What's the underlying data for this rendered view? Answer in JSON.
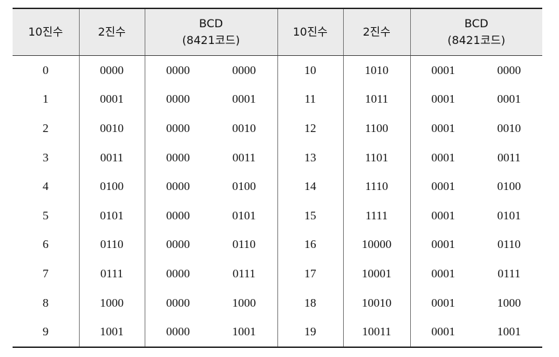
{
  "header": [
    [
      "10진수"
    ],
    [
      "2진수"
    ],
    [
      "BCD",
      "(8421코드)"
    ],
    [
      "10진수"
    ],
    [
      "2진수"
    ],
    [
      "BCD",
      "(8421코드)"
    ]
  ],
  "rows": [
    [
      "0",
      "0000",
      "0000",
      "0000",
      "10",
      "1010",
      "0001",
      "0000"
    ],
    [
      "1",
      "0001",
      "0000",
      "0001",
      "11",
      "1011",
      "0001",
      "0001"
    ],
    [
      "2",
      "0010",
      "0000",
      "0010",
      "12",
      "1100",
      "0001",
      "0010"
    ],
    [
      "3",
      "0011",
      "0000",
      "0011",
      "13",
      "1101",
      "0001",
      "0011"
    ],
    [
      "4",
      "0100",
      "0000",
      "0100",
      "14",
      "1110",
      "0001",
      "0100"
    ],
    [
      "5",
      "0101",
      "0000",
      "0101",
      "15",
      "1111",
      "0001",
      "0101"
    ],
    [
      "6",
      "0110",
      "0000",
      "0110",
      "16",
      "10000",
      "0001",
      "0110"
    ],
    [
      "7",
      "0111",
      "0000",
      "0111",
      "17",
      "10001",
      "0001",
      "0111"
    ],
    [
      "8",
      "1000",
      "0000",
      "1000",
      "18",
      "10010",
      "0001",
      "1000"
    ],
    [
      "9",
      "1001",
      "0000",
      "1001",
      "19",
      "10011",
      "0001",
      "1001"
    ]
  ]
}
